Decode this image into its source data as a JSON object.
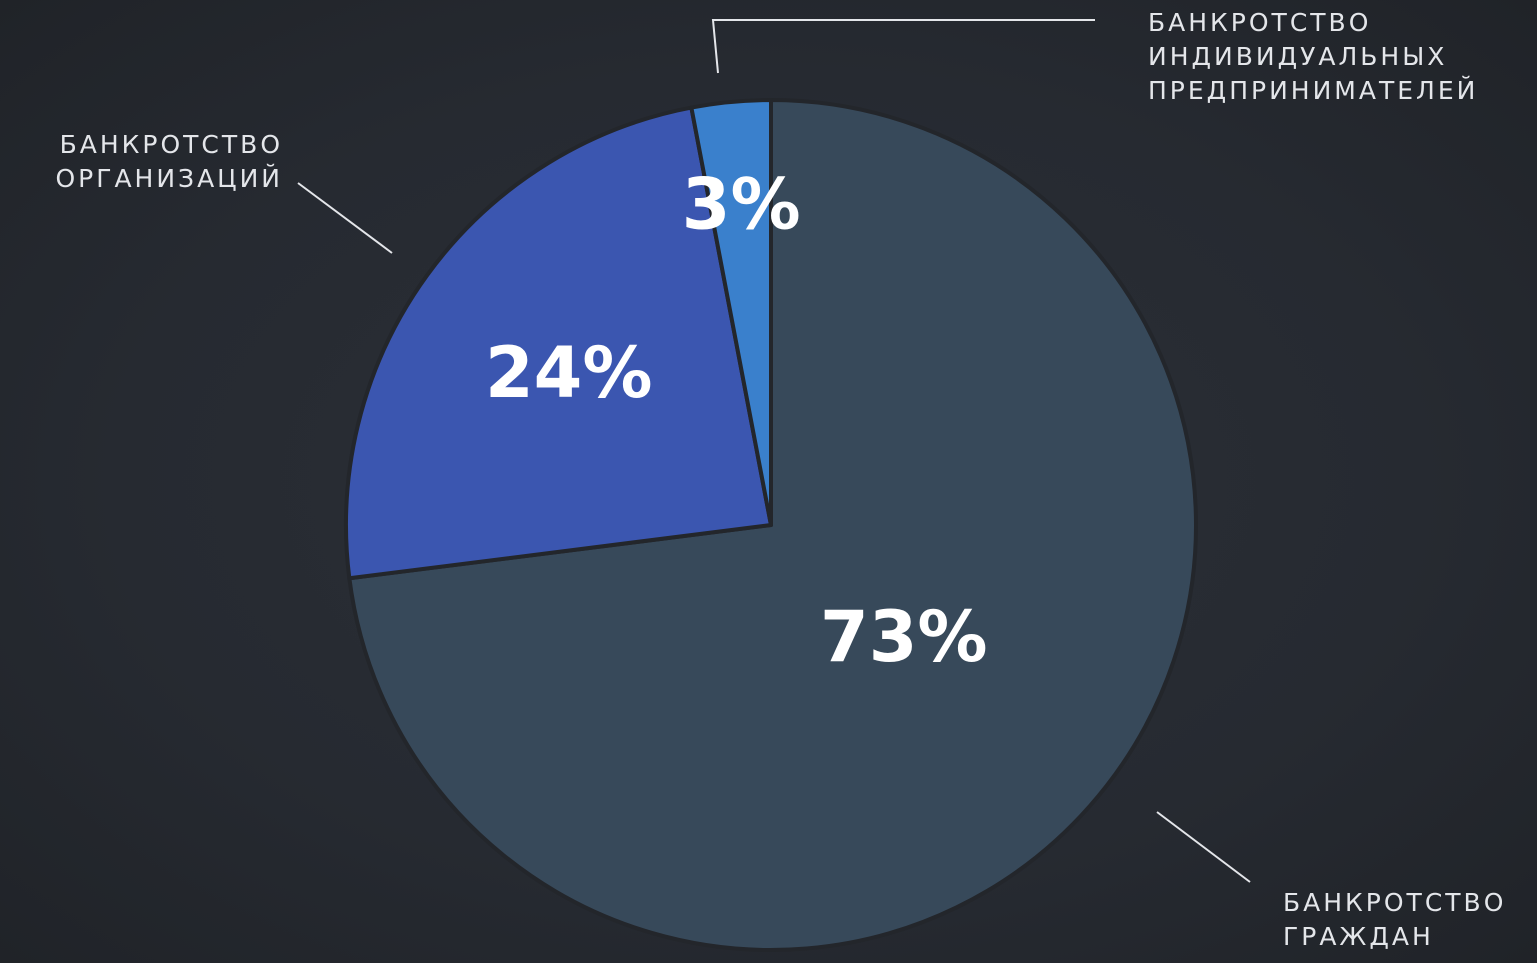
{
  "chart_data": {
    "type": "pie",
    "categories": [
      "БАНКРОТСТВО ГРАЖДАН",
      "БАНКРОТСТВО ОРГАНИЗАЦИЙ",
      "БАНКРОТСТВО ИНДИВИДУАЛЬНЫХ ПРЕДПРИНИМАТЕЛЕЙ"
    ],
    "values": [
      73,
      24,
      3
    ],
    "value_labels": [
      "73%",
      "24%",
      "3%"
    ],
    "colors": [
      "#37495a",
      "#3b56b0",
      "#3a80cc"
    ]
  }
}
